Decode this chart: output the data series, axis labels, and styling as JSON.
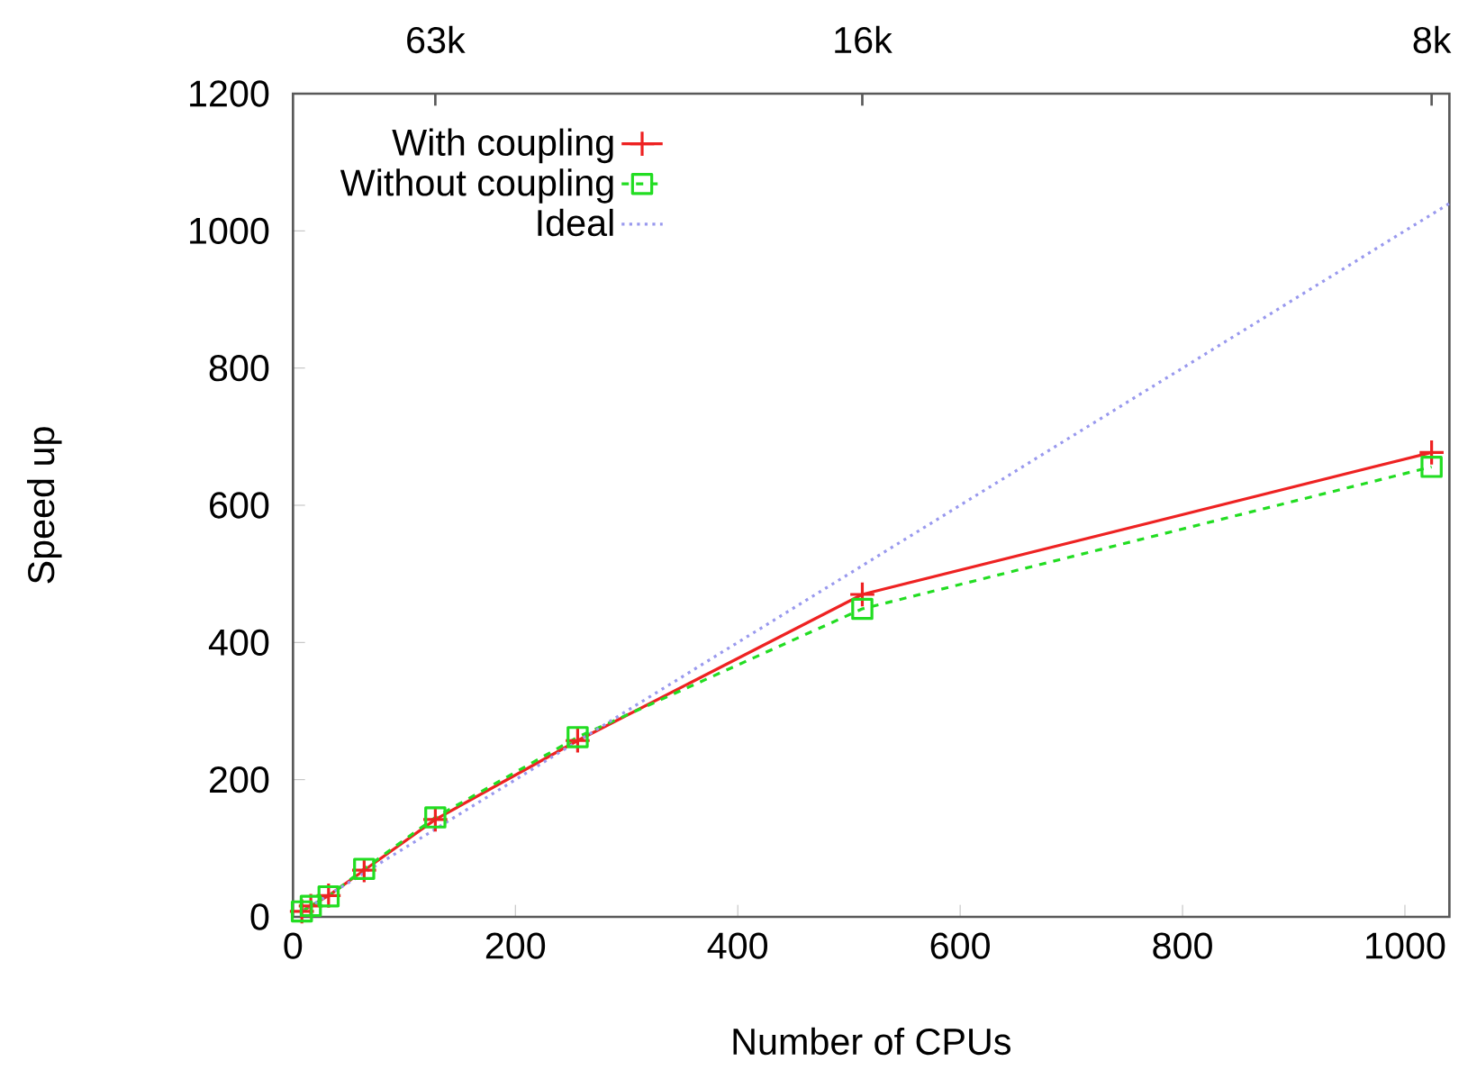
{
  "chart_data": {
    "type": "line",
    "xlabel": "Number of CPUs",
    "ylabel": "Speed up",
    "xlim": [
      0,
      1040
    ],
    "ylim": [
      0,
      1200
    ],
    "xticks": [
      0,
      200,
      400,
      600,
      800,
      1000
    ],
    "yticks": [
      0,
      200,
      400,
      600,
      800,
      1000,
      1200
    ],
    "annotations": [
      {
        "text": "63k",
        "x": 128
      },
      {
        "text": "16k",
        "x": 512
      },
      {
        "text": "8k",
        "x": 1024
      }
    ],
    "grid": false,
    "legend": "top left",
    "series": [
      {
        "name": "With coupling",
        "color": "#ee2222",
        "marker": "cross",
        "line_style": "solid",
        "x": [
          8,
          16,
          32,
          64,
          128,
          256,
          512,
          1024
        ],
        "values": [
          8,
          16,
          31,
          68,
          142,
          257,
          470,
          677
        ]
      },
      {
        "name": "Without coupling",
        "color": "#22dd22",
        "marker": "square",
        "line_style": "dashed",
        "x": [
          8,
          16,
          32,
          64,
          128,
          256,
          512,
          1024
        ],
        "values": [
          8,
          16,
          30,
          70,
          145,
          262,
          449,
          656
        ]
      },
      {
        "name": "Ideal",
        "color": "#9999ee",
        "marker": "none",
        "line_style": "dotted",
        "x": [
          8,
          1040
        ],
        "values": [
          8,
          1040
        ]
      }
    ]
  }
}
